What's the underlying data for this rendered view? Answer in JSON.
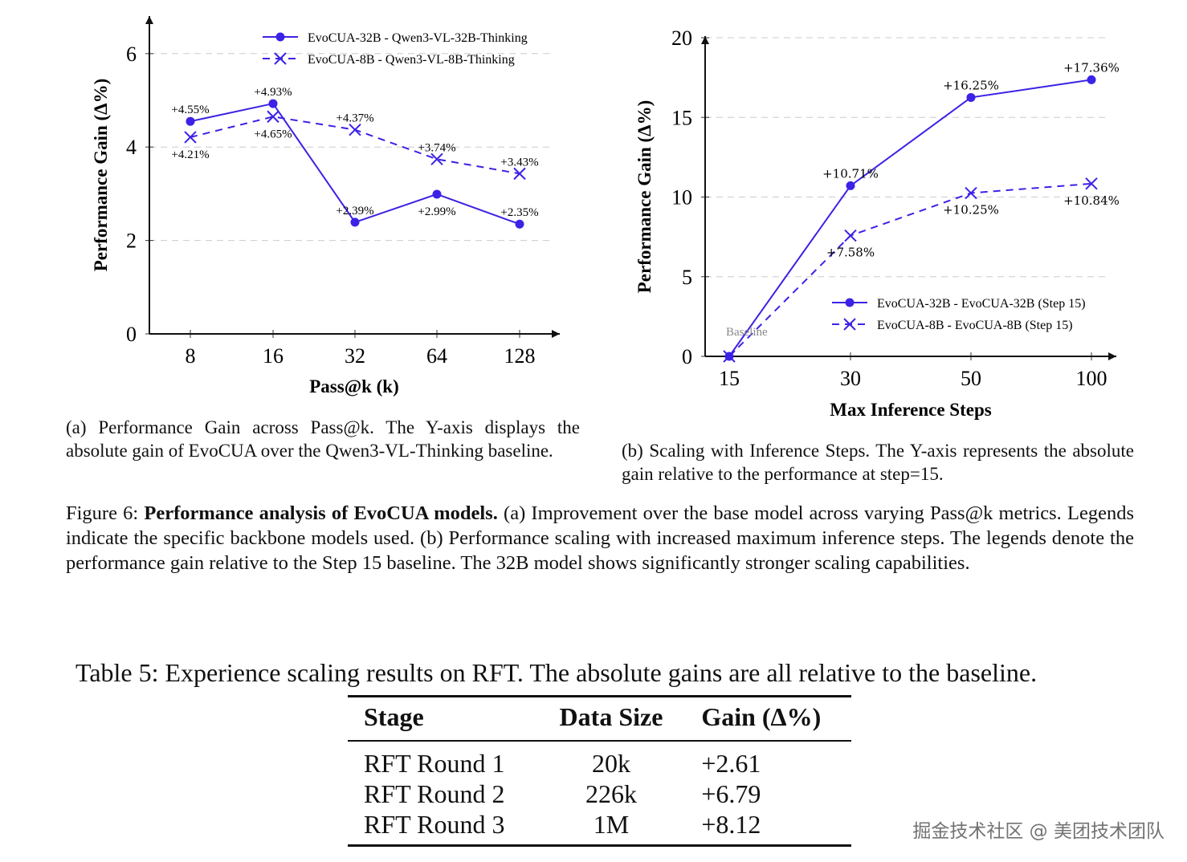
{
  "colors": {
    "series": "#3b22e6",
    "axis": "#111111",
    "grid": "#cccccc"
  },
  "chart_data": [
    {
      "type": "line",
      "xlabel": "Pass@k (k)",
      "xlabel_parts": {
        "pre": "Pass@",
        "k": "k",
        "post": " (",
        "k2": "k",
        ")": ")"
      },
      "ylabel": "Performance Gain (Δ%)",
      "categories": [
        "8",
        "16",
        "32",
        "64",
        "128"
      ],
      "yticks": [
        "0",
        "2",
        "4",
        "6"
      ],
      "ylim": [
        0,
        6.6
      ],
      "grid": true,
      "legend_position": "top-right",
      "series": [
        {
          "name": "EvoCUA-32B - Qwen3-VL-32B-Thinking",
          "marker": "circle",
          "style": "solid",
          "values": [
            4.55,
            4.93,
            2.39,
            2.99,
            2.35
          ],
          "labels": [
            "+4.55%",
            "+4.93%",
            "+2.39%",
            "+2.99%",
            "+2.35%"
          ],
          "label_pos": [
            "above",
            "above",
            "above",
            "below",
            "above"
          ]
        },
        {
          "name": "EvoCUA-8B - Qwen3-VL-8B-Thinking",
          "marker": "x",
          "style": "dashed",
          "values": [
            4.21,
            4.65,
            4.37,
            3.74,
            3.43
          ],
          "labels": [
            "+4.21%",
            "+4.65%",
            "+4.37%",
            "+3.74%",
            "+3.43%"
          ],
          "label_pos": [
            "below",
            "below",
            "above",
            "above",
            "above"
          ]
        }
      ]
    },
    {
      "type": "line",
      "xlabel": "Max Inference Steps",
      "ylabel": "Performance Gain (Δ%)",
      "categories": [
        "15",
        "30",
        "50",
        "100"
      ],
      "yticks": [
        "0",
        "5",
        "10",
        "15",
        "20"
      ],
      "ylim": [
        0,
        20
      ],
      "grid": true,
      "legend_position": "bottom-right",
      "annotation": "Baseline",
      "series": [
        {
          "name": "EvoCUA-32B - EvoCUA-32B (Step 15)",
          "marker": "circle",
          "style": "solid",
          "values": [
            0,
            10.71,
            16.25,
            17.36
          ],
          "labels": [
            "",
            "+10.71%",
            "+16.25%",
            "+17.36%"
          ],
          "label_pos": [
            "above",
            "above",
            "above",
            "above"
          ]
        },
        {
          "name": "EvoCUA-8B - EvoCUA-8B (Step 15)",
          "marker": "x",
          "style": "dashed",
          "values": [
            0,
            7.58,
            10.25,
            10.84
          ],
          "labels": [
            "",
            "+7.58%",
            "+10.25%",
            "+10.84%"
          ],
          "label_pos": [
            "below",
            "below",
            "below",
            "below"
          ]
        }
      ]
    }
  ],
  "captions": {
    "a": "(a) Performance Gain across Pass@k. The Y-axis displays the absolute gain of EvoCUA over the Qwen3-VL-Thinking baseline.",
    "b": "(b) Scaling with Inference Steps. The Y-axis represents the absolute gain relative to the performance at step=15.",
    "figure_label": "Figure 6:",
    "figure_bold": "Performance analysis of EvoCUA models.",
    "figure_text": "(a) Improvement over the base model across varying Pass@k metrics. Legends indicate the specific backbone models used. (b) Performance scaling with increased maximum inference steps. The legends denote the performance gain relative to the Step 15 baseline. The 32B model shows significantly stronger scaling capabilities."
  },
  "table": {
    "title": "Table 5: Experience scaling results on RFT. The absolute gains are all relative to the baseline.",
    "headers": [
      "Stage",
      "Data Size",
      "Gain (Δ%)"
    ],
    "rows": [
      [
        "RFT Round 1",
        "20k",
        "+2.61"
      ],
      [
        "RFT Round 2",
        "226k",
        "+6.79"
      ],
      [
        "RFT Round 3",
        "1M",
        "+8.12"
      ]
    ]
  },
  "watermark": "掘金技术社区 @ 美团技术团队"
}
